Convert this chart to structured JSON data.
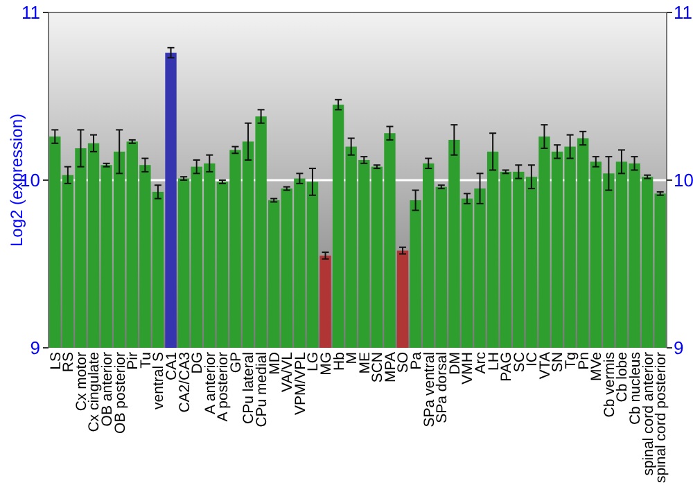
{
  "chart_data": {
    "type": "bar",
    "ylabel": "Log2 (expression)",
    "categories": [
      "LS",
      "RS",
      "Cx motor",
      "Cx cingulate",
      "OB anterior",
      "OB posterior",
      "Pir",
      "Tu",
      "ventral S",
      "CA1",
      "CA2/CA3",
      "DG",
      "A anterior",
      "A posterior",
      "GP",
      "CPu lateral",
      "CPu medial",
      "MD",
      "VA/VL",
      "VPM/VPL",
      "LG",
      "MG",
      "Hb",
      "M",
      "ME",
      "SCN",
      "MPA",
      "SO",
      "Pa",
      "SPa ventral",
      "SPa dorsal",
      "DM",
      "VMH",
      "Arc",
      "LH",
      "PAG",
      "SC",
      "IC",
      "VTA",
      "SN",
      "Tg",
      "Pn",
      "MVe",
      "Cb vermis",
      "Cb lobe",
      "Cb nucleus",
      "spinal cord anterior",
      "spinal cord posterior"
    ],
    "values": [
      10.26,
      10.03,
      10.19,
      10.22,
      10.09,
      10.17,
      10.23,
      10.09,
      9.93,
      10.76,
      10.01,
      10.08,
      10.1,
      9.99,
      10.18,
      10.23,
      10.38,
      9.88,
      9.95,
      10.01,
      9.99,
      9.55,
      10.45,
      10.2,
      10.12,
      10.08,
      10.28,
      9.58,
      9.88,
      10.1,
      9.96,
      10.24,
      9.89,
      9.95,
      10.17,
      10.05,
      10.05,
      10.02,
      10.26,
      10.17,
      10.2,
      10.25,
      10.11,
      10.04,
      10.11,
      10.1,
      10.02,
      9.92
    ],
    "errors": [
      0.04,
      0.05,
      0.11,
      0.05,
      0.01,
      0.13,
      0.01,
      0.04,
      0.04,
      0.03,
      0.01,
      0.04,
      0.05,
      0.01,
      0.02,
      0.11,
      0.04,
      0.01,
      0.01,
      0.03,
      0.08,
      0.02,
      0.03,
      0.05,
      0.02,
      0.01,
      0.04,
      0.02,
      0.06,
      0.03,
      0.01,
      0.09,
      0.03,
      0.09,
      0.11,
      0.01,
      0.04,
      0.07,
      0.07,
      0.04,
      0.07,
      0.04,
      0.03,
      0.1,
      0.07,
      0.04,
      0.01,
      0.01
    ],
    "colors": [
      "#2e9e2e",
      "#2e9e2e",
      "#2e9e2e",
      "#2e9e2e",
      "#2e9e2e",
      "#2e9e2e",
      "#2e9e2e",
      "#2e9e2e",
      "#2e9e2e",
      "#3535b0",
      "#2e9e2e",
      "#2e9e2e",
      "#2e9e2e",
      "#2e9e2e",
      "#2e9e2e",
      "#2e9e2e",
      "#2e9e2e",
      "#2e9e2e",
      "#2e9e2e",
      "#2e9e2e",
      "#2e9e2e",
      "#b03535",
      "#2e9e2e",
      "#2e9e2e",
      "#2e9e2e",
      "#2e9e2e",
      "#2e9e2e",
      "#b03535",
      "#2e9e2e",
      "#2e9e2e",
      "#2e9e2e",
      "#2e9e2e",
      "#2e9e2e",
      "#2e9e2e",
      "#2e9e2e",
      "#2e9e2e",
      "#2e9e2e",
      "#2e9e2e",
      "#2e9e2e",
      "#2e9e2e",
      "#2e9e2e",
      "#2e9e2e",
      "#2e9e2e",
      "#2e9e2e",
      "#2e9e2e",
      "#2e9e2e",
      "#2e9e2e",
      "#2e9e2e"
    ],
    "ylim": [
      9,
      11
    ],
    "yticks": [
      9,
      10,
      11
    ],
    "y2lim": [
      9,
      11
    ],
    "y2ticks": [
      9,
      10,
      11
    ],
    "ref_lines": [
      {
        "axis": "y",
        "value": 10,
        "color": "#ffffff"
      }
    ],
    "grid": false
  }
}
